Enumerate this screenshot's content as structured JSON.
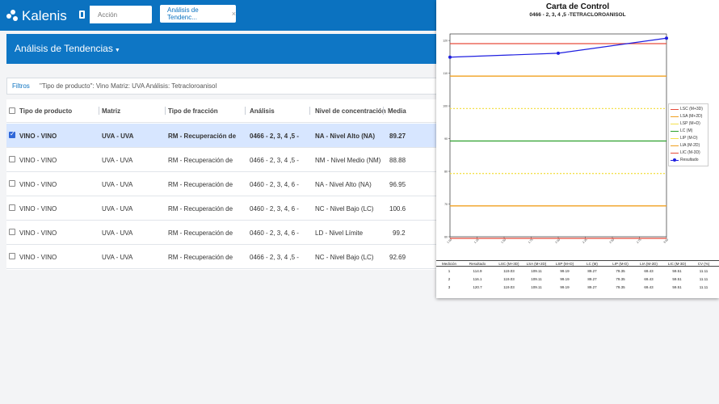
{
  "app": {
    "name": "Kalenis"
  },
  "search": {
    "placeholder": "Acción"
  },
  "tab": {
    "label": "Análisis de Tendenc..."
  },
  "banner": {
    "title": "Análisis de Tendencias"
  },
  "filters": {
    "label": "Filtros",
    "value": "\"Tipo de producto\": Vino Matriz: UVA Análisis: Tetracloroanisol"
  },
  "table": {
    "columns": [
      "Tipo de producto",
      "Matriz",
      "Tipo de fracción",
      "Análisis",
      "Nivel de concentración",
      "Media"
    ],
    "rows": [
      {
        "checked": true,
        "tipo": "VINO - VINO",
        "matriz": "UVA - UVA",
        "fraccion": "RM - Recuperación de",
        "analisis": "0466 - 2, 3, 4 ,5 -",
        "nivel": "NA - Nivel Alto (NA)",
        "media": "89.27"
      },
      {
        "checked": false,
        "tipo": "VINO - VINO",
        "matriz": "UVA - UVA",
        "fraccion": "RM - Recuperación de",
        "analisis": "0466 - 2, 3, 4 ,5 -",
        "nivel": "NM - Nivel Medio (NM)",
        "media": "88.88"
      },
      {
        "checked": false,
        "tipo": "VINO - VINO",
        "matriz": "UVA - UVA",
        "fraccion": "RM - Recuperación de",
        "analisis": "0460 - 2, 3, 4, 6 -",
        "nivel": "NA - Nivel Alto (NA)",
        "media": "96.95"
      },
      {
        "checked": false,
        "tipo": "VINO - VINO",
        "matriz": "UVA - UVA",
        "fraccion": "RM - Recuperación de",
        "analisis": "0460 - 2, 3, 4, 6 -",
        "nivel": "NC - Nivel Bajo (LC)",
        "media": "100.6"
      },
      {
        "checked": false,
        "tipo": "VINO - VINO",
        "matriz": "UVA - UVA",
        "fraccion": "RM - Recuperación de",
        "analisis": "0460 - 2, 3, 4, 6 -",
        "nivel": "LD - Nivel Límite",
        "media": "99.2"
      },
      {
        "checked": false,
        "tipo": "VINO - VINO",
        "matriz": "UVA - UVA",
        "fraccion": "RM - Recuperación de",
        "analisis": "0466 - 2, 3, 4 ,5 -",
        "nivel": "NC - Nivel Bajo (LC)",
        "media": "92.69"
      }
    ]
  },
  "chart_data": {
    "type": "line",
    "title": "Carta de Control",
    "subtitle": "0466 - 2, 3, 4 ,5 -TETRACLOROANISOL",
    "xlabel": "",
    "ylabel": "",
    "xlim": [
      1.0,
      3.0
    ],
    "ylim": [
      60,
      122
    ],
    "x_ticks": [
      "1.00",
      "1.25",
      "1.50",
      "1.75",
      "2.00",
      "2.25",
      "2.50",
      "2.75",
      "3.00"
    ],
    "y_ticks": [
      "60",
      "70",
      "80",
      "90",
      "100",
      "110",
      "120"
    ],
    "grid": false,
    "legend_position": "right",
    "series": [
      {
        "name": "LSC (M+3D)",
        "kind": "hline",
        "color": "#e74c3c",
        "value": 119.03
      },
      {
        "name": "LSA (M+2D)",
        "kind": "hline",
        "color": "#f0a020",
        "value": 109.11
      },
      {
        "name": "LSP (M+D)",
        "kind": "hline",
        "color": "#f4e04d",
        "value": 99.19,
        "dashed": true
      },
      {
        "name": "LC (M)",
        "kind": "hline",
        "color": "#2ca02c",
        "value": 89.27
      },
      {
        "name": "LIP (M-D)",
        "kind": "hline",
        "color": "#f4e04d",
        "value": 79.35,
        "dashed": true
      },
      {
        "name": "LIA (M-2D)",
        "kind": "hline",
        "color": "#f0a020",
        "value": 69.43
      },
      {
        "name": "LIC (M-3D)",
        "kind": "hline",
        "color": "#e74c3c",
        "value": 59.51
      },
      {
        "name": "Resultado",
        "kind": "line",
        "color": "#1f1fe0",
        "x": [
          1,
          2,
          3
        ],
        "values": [
          114.9,
          116.1,
          120.7
        ]
      }
    ]
  },
  "stats": {
    "columns": [
      "Medición",
      "Resultado",
      "LSC (M+3D)",
      "LSA (M+2D)",
      "LSP (M+D)",
      "LC (M)",
      "LIP (M-D)",
      "LIA (M-2D)",
      "LIC (M-3D)",
      "CV (%)"
    ],
    "rows": [
      [
        "1",
        "114.9",
        "119.03",
        "109.11",
        "99.19",
        "89.27",
        "79.35",
        "69.43",
        "59.51",
        "11.11"
      ],
      [
        "2",
        "116.1",
        "119.03",
        "109.11",
        "99.19",
        "89.27",
        "79.35",
        "69.43",
        "59.51",
        "11.11"
      ],
      [
        "3",
        "120.7",
        "119.03",
        "109.11",
        "99.19",
        "89.27",
        "79.35",
        "69.43",
        "59.51",
        "11.11"
      ]
    ]
  }
}
